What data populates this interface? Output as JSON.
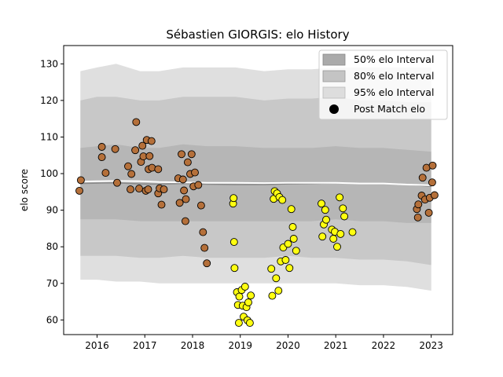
{
  "chart_data": {
    "type": "scatter",
    "title": "Sébastien GIORGIS: elo History",
    "xlabel": "",
    "ylabel": "elo score",
    "xlim": [
      2015.3,
      2023.45
    ],
    "ylim": [
      56,
      135
    ],
    "xticks": [
      2016,
      2017,
      2018,
      2019,
      2020,
      2021,
      2022,
      2023
    ],
    "yticks": [
      60,
      70,
      80,
      90,
      100,
      110,
      120,
      130
    ],
    "legend_position": "top-right",
    "legend": [
      {
        "label": "50% elo Interval",
        "kind": "band",
        "color": "#aaaaaa"
      },
      {
        "label": "80% elo Interval",
        "kind": "band",
        "color": "#c4c4c4"
      },
      {
        "label": "95% elo Interval",
        "kind": "band",
        "color": "#dddddd"
      },
      {
        "label": "Post Match elo",
        "kind": "marker",
        "color": "#000000"
      }
    ],
    "colors": {
      "brown": "#b5703a",
      "yellow": "#ffff10",
      "line": "#ffffff",
      "edge": "#000000"
    },
    "bands": {
      "x": [
        2015.65,
        2016.0,
        2016.4,
        2016.9,
        2017.3,
        2017.8,
        2018.3,
        2018.9,
        2019.5,
        2020.0,
        2020.5,
        2021.0,
        2021.5,
        2022.0,
        2022.5,
        2023.0
      ],
      "p95_hi": [
        128,
        129,
        130,
        128,
        128,
        129,
        129,
        129,
        128,
        128.5,
        128.5,
        129,
        129,
        129,
        129,
        129
      ],
      "p95_lo": [
        71,
        71,
        70.5,
        70.5,
        70,
        70,
        70,
        70,
        70,
        70,
        70,
        70,
        69.5,
        69.5,
        69,
        68
      ],
      "p80_hi": [
        120,
        121,
        121,
        120,
        120,
        121,
        121,
        121,
        120,
        120.5,
        120.5,
        121,
        120,
        120,
        119.5,
        119.5
      ],
      "p80_lo": [
        77.5,
        77.5,
        77.5,
        77,
        77,
        77.5,
        77,
        77,
        77,
        77.5,
        77,
        77,
        76.5,
        76.5,
        76,
        75
      ],
      "p50_hi": [
        107,
        107.5,
        108,
        107,
        107,
        108,
        107.5,
        107.5,
        107,
        107,
        107,
        107.5,
        107,
        107,
        106.5,
        106
      ],
      "p50_lo": [
        87.5,
        87.5,
        87.5,
        87,
        87,
        87,
        87,
        87,
        87,
        87,
        87,
        87.5,
        87,
        87,
        86.5,
        86.5
      ],
      "median": [
        97.3,
        97.4,
        97.5,
        97.2,
        97.1,
        97.3,
        97.1,
        97.0,
        97.0,
        97.2,
        97.3,
        97.5,
        97.3,
        97.3,
        97.0,
        96.5
      ],
      "mean": [
        97.8,
        97.9,
        98.0,
        97.9,
        97.7,
        97.6,
        97.5,
        97.5,
        97.4,
        97.5,
        97.5,
        97.5,
        97.3,
        97.3,
        97.0,
        96.8
      ]
    },
    "series": [
      {
        "color": "brown",
        "points": [
          [
            2015.63,
            95.3
          ],
          [
            2015.66,
            98.2
          ],
          [
            2016.1,
            107.3
          ],
          [
            2016.1,
            104.5
          ],
          [
            2016.18,
            100.2
          ],
          [
            2016.38,
            106.7
          ],
          [
            2016.42,
            97.5
          ],
          [
            2016.65,
            102.0
          ],
          [
            2016.7,
            95.7
          ],
          [
            2016.72,
            99.9
          ],
          [
            2016.8,
            106.4
          ],
          [
            2016.82,
            114.1
          ],
          [
            2016.88,
            95.9
          ],
          [
            2016.92,
            103.2
          ],
          [
            2016.95,
            107.6
          ],
          [
            2016.97,
            104.7
          ],
          [
            2017.02,
            95.3
          ],
          [
            2017.04,
            109.2
          ],
          [
            2017.07,
            95.7
          ],
          [
            2017.08,
            101.2
          ],
          [
            2017.1,
            104.8
          ],
          [
            2017.14,
            108.9
          ],
          [
            2017.15,
            101.6
          ],
          [
            2017.28,
            101.2
          ],
          [
            2017.28,
            94.6
          ],
          [
            2017.31,
            96.0
          ],
          [
            2017.35,
            91.5
          ],
          [
            2017.4,
            95.7
          ],
          [
            2017.7,
            98.7
          ],
          [
            2017.73,
            92.0
          ],
          [
            2017.77,
            105.3
          ],
          [
            2017.8,
            98.4
          ],
          [
            2017.82,
            95.4
          ],
          [
            2017.85,
            87.0
          ],
          [
            2017.86,
            93.0
          ],
          [
            2017.9,
            103.1
          ],
          [
            2017.95,
            99.9
          ],
          [
            2017.98,
            105.3
          ],
          [
            2018.02,
            96.5
          ],
          [
            2018.05,
            100.3
          ],
          [
            2018.12,
            96.9
          ],
          [
            2018.18,
            91.3
          ],
          [
            2018.22,
            84.0
          ],
          [
            2018.25,
            79.7
          ],
          [
            2018.3,
            75.5
          ],
          [
            2022.7,
            90.3
          ],
          [
            2022.72,
            88.0
          ],
          [
            2022.73,
            91.6
          ],
          [
            2022.8,
            94.0
          ],
          [
            2022.82,
            98.9
          ],
          [
            2022.87,
            92.9
          ],
          [
            2022.9,
            101.6
          ],
          [
            2022.95,
            89.3
          ],
          [
            2022.97,
            93.4
          ],
          [
            2023.02,
            97.6
          ],
          [
            2023.03,
            102.2
          ],
          [
            2023.07,
            94.1
          ]
        ]
      },
      {
        "color": "yellow",
        "points": [
          [
            2018.85,
            91.8
          ],
          [
            2018.86,
            93.3
          ],
          [
            2018.87,
            81.3
          ],
          [
            2018.88,
            74.2
          ],
          [
            2018.93,
            67.6
          ],
          [
            2018.95,
            64.1
          ],
          [
            2018.97,
            59.2
          ],
          [
            2018.98,
            66.4
          ],
          [
            2019.03,
            68.2
          ],
          [
            2019.05,
            63.9
          ],
          [
            2019.07,
            60.9
          ],
          [
            2019.1,
            69.1
          ],
          [
            2019.13,
            63.5
          ],
          [
            2019.15,
            59.9
          ],
          [
            2019.17,
            64.8
          ],
          [
            2019.2,
            59.2
          ],
          [
            2019.22,
            66.7
          ],
          [
            2019.65,
            74.0
          ],
          [
            2019.67,
            66.6
          ],
          [
            2019.7,
            93.1
          ],
          [
            2019.72,
            95.2
          ],
          [
            2019.75,
            71.4
          ],
          [
            2019.77,
            94.6
          ],
          [
            2019.8,
            68.0
          ],
          [
            2019.82,
            93.6
          ],
          [
            2019.85,
            76.0
          ],
          [
            2019.88,
            92.8
          ],
          [
            2019.9,
            79.8
          ],
          [
            2019.95,
            76.4
          ],
          [
            2020.0,
            80.8
          ],
          [
            2020.03,
            74.2
          ],
          [
            2020.07,
            90.3
          ],
          [
            2020.1,
            85.4
          ],
          [
            2020.12,
            82.2
          ],
          [
            2020.17,
            78.9
          ],
          [
            2020.7,
            91.8
          ],
          [
            2020.72,
            82.8
          ],
          [
            2020.75,
            86.1
          ],
          [
            2020.78,
            90.1
          ],
          [
            2020.8,
            87.4
          ],
          [
            2020.92,
            84.7
          ],
          [
            2020.95,
            82.2
          ],
          [
            2020.98,
            84.1
          ],
          [
            2021.03,
            80.0
          ],
          [
            2021.08,
            93.5
          ],
          [
            2021.1,
            83.5
          ],
          [
            2021.15,
            90.5
          ],
          [
            2021.18,
            88.3
          ],
          [
            2021.35,
            84.0
          ]
        ]
      }
    ]
  }
}
